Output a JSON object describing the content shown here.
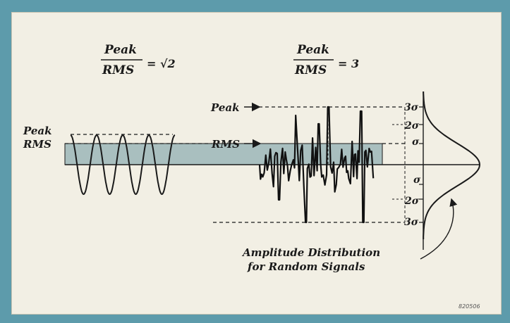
{
  "colors": {
    "frame": "#5d9bab",
    "panel": "#f2efe4",
    "band": "#a9bfbf",
    "ink": "#1a1a1a"
  },
  "sine_ratio": {
    "numerator": "Peak",
    "denominator": "RMS",
    "equals": "= √2"
  },
  "random_ratio": {
    "numerator": "Peak",
    "denominator": "RMS",
    "equals": "= 3"
  },
  "sine_labels": {
    "peak": "Peak",
    "rms": "RMS"
  },
  "random_labels": {
    "peak": "Peak",
    "rms": "RMS"
  },
  "sigma_labels": {
    "pos3": "3σ",
    "pos2": "2σ",
    "pos1": "σ",
    "neg1": "σ",
    "neg2": "2σ",
    "neg3": "3σ"
  },
  "caption": {
    "line1": "Amplitude Distribution",
    "line2": "for Random Signals"
  },
  "figure_code": "820506",
  "icons": {
    "peak_arrow": "right-arrow-icon",
    "rms_arrow": "right-arrow-icon",
    "caption_pointer": "curved-arrow-icon"
  }
}
